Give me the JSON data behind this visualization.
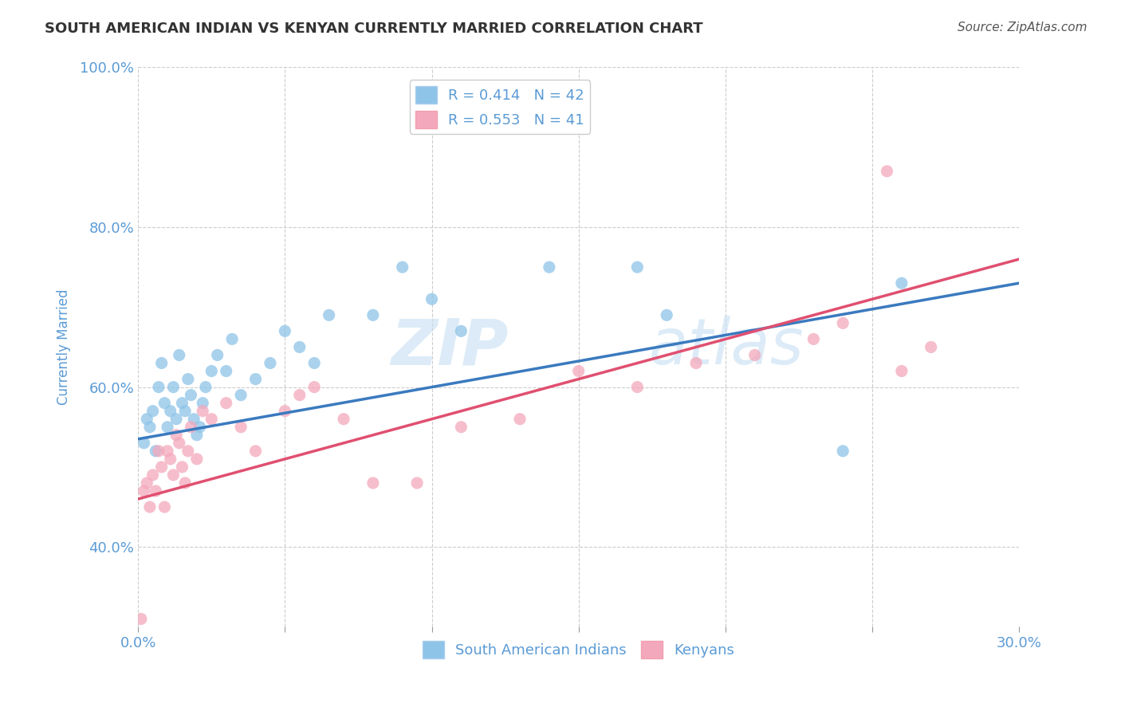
{
  "title": "SOUTH AMERICAN INDIAN VS KENYAN CURRENTLY MARRIED CORRELATION CHART",
  "source": "Source: ZipAtlas.com",
  "ylabel": "Currently Married",
  "xlim": [
    0.0,
    30.0
  ],
  "ylim": [
    30.0,
    100.0
  ],
  "yticks": [
    40.0,
    60.0,
    80.0,
    100.0
  ],
  "xticks": [
    0.0,
    5.0,
    10.0,
    15.0,
    20.0,
    25.0,
    30.0
  ],
  "legend_r1": "R = 0.414   N = 42",
  "legend_r2": "R = 0.553   N = 41",
  "color_blue": "#8ec4e8",
  "color_pink": "#f4a8bc",
  "color_blue_line": "#3a7abf",
  "color_pink_line": "#e05070",
  "color_axis_text": "#5b9bd5",
  "watermark_text": "ZIP",
  "watermark_text2": "atlas",
  "background_color": "#ffffff",
  "grid_color": "#cccccc",
  "series1_label": "South American Indians",
  "series2_label": "Kenyans",
  "blue_scatter_x": [
    0.2,
    0.3,
    0.4,
    0.5,
    0.6,
    0.7,
    0.8,
    0.9,
    1.0,
    1.1,
    1.2,
    1.3,
    1.4,
    1.5,
    1.6,
    1.7,
    1.8,
    1.9,
    2.0,
    2.1,
    2.2,
    2.3,
    2.5,
    2.7,
    3.0,
    3.2,
    3.5,
    4.0,
    4.5,
    5.0,
    5.5,
    6.0,
    6.5,
    8.0,
    9.0,
    10.0,
    11.0,
    14.0,
    17.0,
    18.0,
    24.0,
    26.0
  ],
  "blue_scatter_y": [
    53.0,
    56.0,
    55.0,
    57.0,
    52.0,
    60.0,
    63.0,
    58.0,
    55.0,
    57.0,
    60.0,
    56.0,
    64.0,
    58.0,
    57.0,
    61.0,
    59.0,
    56.0,
    54.0,
    55.0,
    58.0,
    60.0,
    62.0,
    64.0,
    62.0,
    66.0,
    59.0,
    61.0,
    63.0,
    67.0,
    65.0,
    63.0,
    69.0,
    69.0,
    75.0,
    71.0,
    67.0,
    75.0,
    75.0,
    69.0,
    52.0,
    73.0
  ],
  "pink_scatter_x": [
    0.1,
    0.2,
    0.3,
    0.4,
    0.5,
    0.6,
    0.7,
    0.8,
    0.9,
    1.0,
    1.1,
    1.2,
    1.3,
    1.4,
    1.5,
    1.6,
    1.7,
    1.8,
    2.0,
    2.2,
    2.5,
    3.0,
    3.5,
    4.0,
    5.0,
    5.5,
    6.0,
    7.0,
    8.0,
    9.5,
    11.0,
    13.0,
    15.0,
    17.0,
    19.0,
    21.0,
    23.0,
    24.0,
    25.5,
    26.0,
    27.0
  ],
  "pink_scatter_y": [
    31.0,
    47.0,
    48.0,
    45.0,
    49.0,
    47.0,
    52.0,
    50.0,
    45.0,
    52.0,
    51.0,
    49.0,
    54.0,
    53.0,
    50.0,
    48.0,
    52.0,
    55.0,
    51.0,
    57.0,
    56.0,
    58.0,
    55.0,
    52.0,
    57.0,
    59.0,
    60.0,
    56.0,
    48.0,
    48.0,
    55.0,
    56.0,
    62.0,
    60.0,
    63.0,
    64.0,
    66.0,
    68.0,
    87.0,
    62.0,
    65.0
  ],
  "blue_line_x": [
    0.0,
    30.0
  ],
  "blue_line_y": [
    53.5,
    73.0
  ],
  "pink_line_x": [
    0.0,
    30.0
  ],
  "pink_line_y": [
    46.0,
    76.0
  ]
}
